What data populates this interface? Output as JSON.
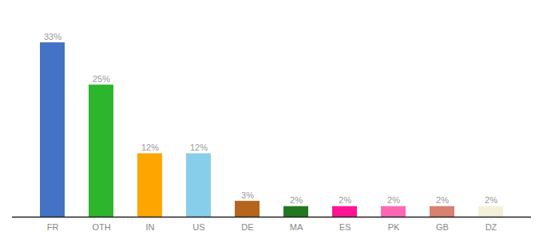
{
  "chart_data": {
    "type": "bar",
    "categories": [
      "FR",
      "OTH",
      "IN",
      "US",
      "DE",
      "MA",
      "ES",
      "PK",
      "GB",
      "DZ"
    ],
    "values": [
      33,
      25,
      12,
      12,
      3,
      2,
      2,
      2,
      2,
      2
    ],
    "value_labels": [
      "33%",
      "25%",
      "12%",
      "12%",
      "3%",
      "2%",
      "2%",
      "2%",
      "2%",
      "2%"
    ],
    "colors": [
      "#4472c4",
      "#2db52d",
      "#ffa500",
      "#87ceeb",
      "#b5651d",
      "#217821",
      "#ff1493",
      "#ff69b4",
      "#d98070",
      "#f5f0dc"
    ],
    "ylim": [
      0,
      38
    ],
    "grid": false,
    "data_labels": true,
    "tick_labels": "x"
  }
}
